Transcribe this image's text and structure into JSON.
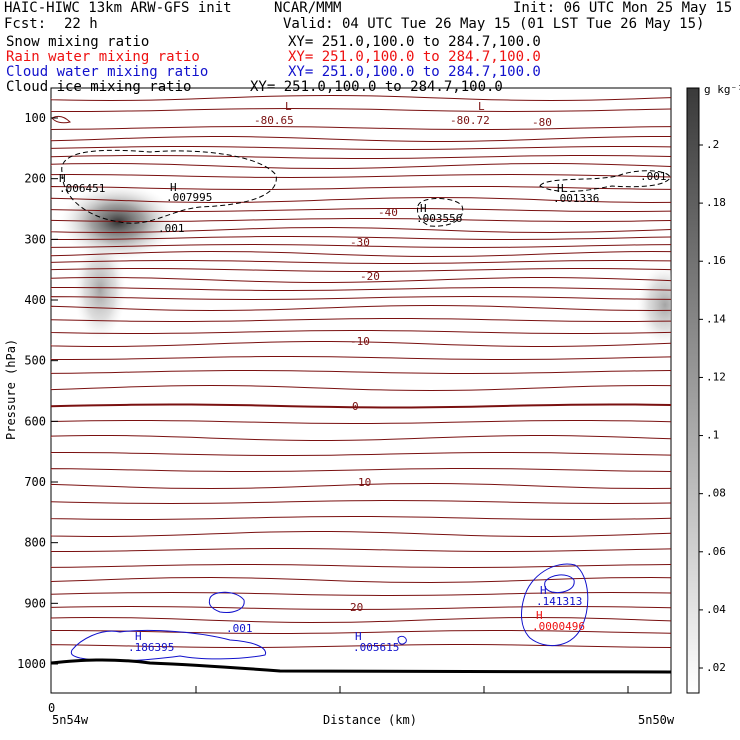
{
  "header": {
    "left_line1": "HAIC-HIWC 13km ARW-GFS init",
    "left_line2": "Fcst:",
    "fcst_value": "22 h",
    "center_line1": "NCAR/MMM",
    "init": "Init: 06 UTC Mon 25 May 15",
    "valid": "Valid: 04 UTC Tue 26 May 15 (01 LST Tue 26 May 15)",
    "fields": [
      {
        "name": "Snow mixing ratio",
        "xy": "XY= 251.0,100.0 to 284.7,100.0",
        "color": "#000000"
      },
      {
        "name": "Rain water mixing ratio",
        "xy": "XY= 251.0,100.0 to 284.7,100.0",
        "color": "#ee1111"
      },
      {
        "name": "Cloud water mixing ratio",
        "xy": "XY= 251.0,100.0 to 284.7,100.0",
        "color": "#1111cc"
      },
      {
        "name": "Cloud ice mixing ratio",
        "xy": "XY= 251.0,100.0 to 284.7,100.0",
        "color": "#000000"
      }
    ]
  },
  "chart_data": {
    "type": "contour",
    "ylabel": "Pressure (hPa)",
    "xlabel": "Distance (km)",
    "x_origin_label": "0",
    "x_left_label": "5n54w",
    "x_right_label": "5n50w",
    "y_ticks": [
      100,
      200,
      300,
      400,
      500,
      600,
      700,
      800,
      900,
      1000
    ],
    "ylim": [
      1050,
      50
    ],
    "colorbar": {
      "unit_label": "g kg⁻¹",
      "ticks": [
        ".2",
        ".18",
        ".16",
        ".14",
        ".12",
        ".1",
        ".08",
        ".06",
        ".04",
        ".02"
      ]
    },
    "temperature_labels": [
      "-80.65",
      "-80.72",
      "-80",
      "-40",
      "-30",
      "-20",
      "-10",
      "0",
      "10",
      "20"
    ],
    "maxima_labels": [
      {
        "text": "H",
        "value": ".006451",
        "color": "#000000"
      },
      {
        "text": "H",
        "value": ".007995",
        "color": "#000000"
      },
      {
        "text": "H",
        "value": ".003556",
        "color": "#000000"
      },
      {
        "text": "H",
        "value": ".001336",
        "color": "#000000"
      },
      {
        "text": "H",
        "value": ".186395",
        "color": "#1111cc"
      },
      {
        "text": "H",
        "value": ".005615",
        "color": "#1111cc"
      },
      {
        "text": "H",
        "value": ".141313",
        "color": "#1111cc"
      },
      {
        "text": "H",
        "value": ".0000496",
        "color": "#ee1111"
      }
    ],
    "minima_labels": [
      "L",
      "L"
    ],
    "contour_level_labels": [
      {
        "value": ".001",
        "color": "#000000"
      },
      {
        "value": ".001",
        "color": "#000000"
      },
      {
        "value": ".001",
        "color": "#1111cc"
      }
    ]
  }
}
